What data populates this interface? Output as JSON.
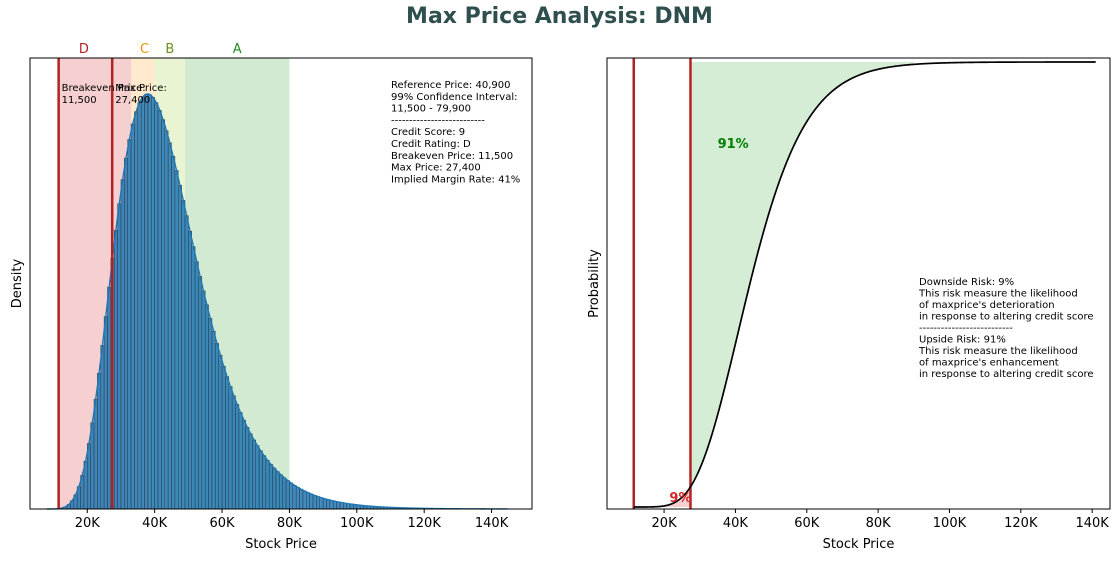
{
  "title": "Max Price Analysis: DNM",
  "chart_data": [
    {
      "type": "histogram",
      "xlabel": "Stock Price",
      "ylabel": "Density",
      "xlim": [
        3000,
        152000
      ],
      "x_ticks": [
        20000,
        40000,
        60000,
        80000,
        100000,
        120000,
        140000
      ],
      "x_tick_labels": [
        "20K",
        "40K",
        "60K",
        "80K",
        "100K",
        "120K",
        "140K"
      ],
      "y_ticks_shown": false,
      "distribution": {
        "shape": "lognormal-like",
        "min": 8000,
        "mode": 38500,
        "max": 145000
      },
      "bars_color": "#1f77b4",
      "kde_line": true,
      "zones": [
        {
          "label": "D",
          "from": 11500,
          "to": 33000,
          "color": "#d62728",
          "label_color": "#b22222"
        },
        {
          "label": "C",
          "from": 33000,
          "to": 40000,
          "color": "#ff9f1c",
          "label_color": "#e69500"
        },
        {
          "label": "B",
          "from": 40000,
          "to": 49000,
          "color": "#9acd32",
          "label_color": "#6b8e23"
        },
        {
          "label": "A",
          "from": 49000,
          "to": 80000,
          "color": "#2ca02c",
          "label_color": "#228b22"
        }
      ],
      "vlines": [
        {
          "x": 11500,
          "label_line1": "Breakeven Price:",
          "label_line2": "11,500"
        },
        {
          "x": 27400,
          "label_line1": "Max Price:",
          "label_line2": "27,400"
        }
      ],
      "info_lines": [
        "Reference Price: 40,900",
        "99% Confidence Interval:",
        "11,500 - 79,900",
        "--------------------------",
        "Credit Score: 9",
        "Credit Rating: D",
        "Breakeven Price: 11,500",
        "Max Price: 27,400",
        "Implied Margin Rate: 41%"
      ]
    },
    {
      "type": "line",
      "series_kind": "cdf",
      "xlabel": "Stock Price",
      "ylabel": "Probability",
      "xlim": [
        4000,
        145000
      ],
      "x_ticks": [
        20000,
        40000,
        60000,
        80000,
        100000,
        120000,
        140000
      ],
      "x_tick_labels": [
        "20K",
        "40K",
        "60K",
        "80K",
        "100K",
        "120K",
        "140K"
      ],
      "y_ticks_shown": false,
      "vlines": [
        11500,
        27400
      ],
      "downside_fill_color": "#d62728",
      "upside_fill_color": "#2ca02c",
      "downside_label": "9%",
      "upside_label": "91%",
      "downside_label_color": "#d62728",
      "upside_label_color": "#008000",
      "info_lines": [
        "Downside Risk: 9%",
        "This risk measure the likelihood",
        "of maxprice's deterioration",
        "in response to altering credit score",
        "--------------------------",
        "Upside Risk: 91%",
        "This risk measure the likelihood",
        "of maxprice's enhancement",
        "in response to altering credit score"
      ]
    }
  ]
}
